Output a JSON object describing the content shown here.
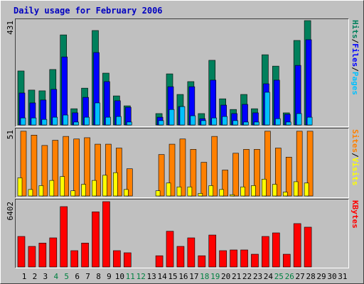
{
  "chart_data": {
    "type": "bar",
    "title": "Daily usage for February 2006",
    "categories": [
      "1",
      "2",
      "3",
      "4",
      "5",
      "6",
      "7",
      "8",
      "9",
      "10",
      "11",
      "12",
      "13",
      "14",
      "15",
      "16",
      "17",
      "18",
      "19",
      "20",
      "21",
      "22",
      "23",
      "24",
      "25",
      "26",
      "27",
      "28",
      "29",
      "30",
      "31"
    ],
    "category_colors": [
      "#000000",
      "#000000",
      "#000000",
      "#008040",
      "#008040",
      "#000000",
      "#000000",
      "#000000",
      "#000000",
      "#000000",
      "#008040",
      "#008040",
      "#000000",
      "#000000",
      "#000000",
      "#000000",
      "#000000",
      "#008040",
      "#008040",
      "#000000",
      "#000000",
      "#000000",
      "#000000",
      "#000000",
      "#008040",
      "#008040",
      "#000000",
      "#000000",
      "#000000",
      "#000000",
      "#000000"
    ],
    "legend_separator": "/",
    "panels": [
      {
        "ylim": [
          0,
          431
        ],
        "yticks": [
          431
        ],
        "series": [
          {
            "name": "Hits",
            "color": "#00805c",
            "values": [
              223,
              144,
              141,
              229,
              372,
              67,
              152,
              390,
              214,
              120,
              79,
              0,
              0,
              47,
              211,
              126,
              179,
              47,
              267,
              108,
              64,
              126,
              67,
              290,
              243,
              50,
              349,
              431,
              0,
              0,
              0
            ]
          },
          {
            "name": "Files",
            "color": "#0000ff",
            "values": [
              132,
              91,
              103,
              147,
              281,
              50,
              114,
              299,
              179,
              100,
              73,
              0,
              0,
              32,
              158,
              76,
              158,
              26,
              185,
              82,
              47,
              85,
              50,
              170,
              185,
              44,
              246,
              352,
              0,
              0,
              0
            ]
          },
          {
            "name": "Pages",
            "color": "#00c0ff",
            "values": [
              29,
              29,
              23,
              32,
              41,
              12,
              32,
              91,
              32,
              35,
              12,
              0,
              0,
              18,
              64,
              76,
              38,
              18,
              29,
              35,
              18,
              12,
              12,
              135,
              26,
              12,
              47,
              32,
              0,
              0,
              0
            ]
          }
        ]
      },
      {
        "ylim": [
          0,
          51
        ],
        "yticks": [
          51
        ],
        "series": [
          {
            "name": "Sites",
            "color": "#ff8000",
            "values": [
              50,
              47,
              39,
              43,
              46,
              44,
              45,
              40,
              40,
              37,
              21,
              0,
              0,
              32,
              40,
              44,
              36,
              26,
              46,
              20,
              33,
              36,
              36,
              50,
              37,
              30,
              50,
              50,
              0,
              0,
              0
            ]
          },
          {
            "name": "Visits",
            "color": "#ffff00",
            "values": [
              14,
              5,
              8,
              12,
              15,
              4,
              9,
              12,
              16,
              18,
              5,
              0,
              0,
              4,
              10,
              7,
              7,
              2,
              8,
              5,
              1,
              7,
              8,
              13,
              9,
              3,
              11,
              10,
              0,
              0,
              0
            ]
          }
        ]
      },
      {
        "ylim": [
          0,
          6402
        ],
        "yticks": [
          6402
        ],
        "series": [
          {
            "name": "KBytes",
            "color": "#ff0000",
            "values": [
              2992,
              2018,
              2343,
              2853,
              5915,
              1600,
              2343,
              5400,
              6402,
              1600,
              1392,
              0,
              0,
              1100,
              3500,
              2018,
              2853,
              1100,
              3130,
              1600,
              1670,
              1670,
              1250,
              2992,
              3340,
              1250,
              4250,
              3900,
              0,
              0,
              0
            ]
          }
        ]
      }
    ]
  }
}
